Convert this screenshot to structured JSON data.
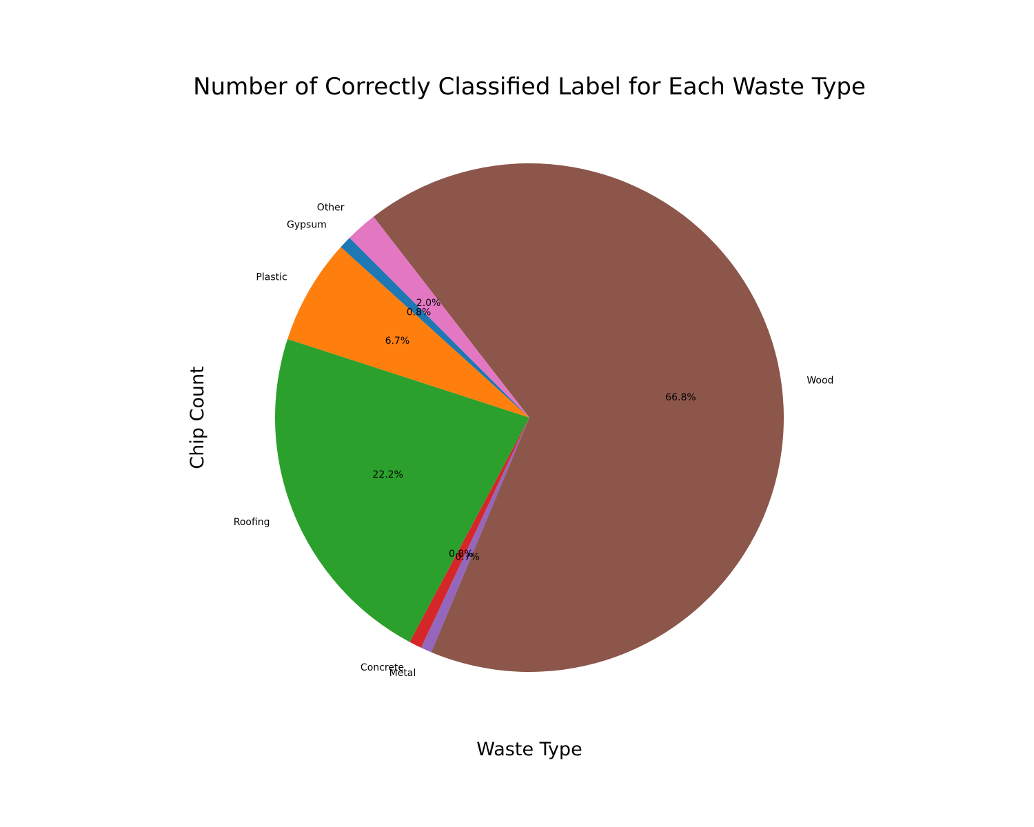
{
  "chart_data": {
    "type": "pie",
    "title": "Number of Correctly Classified Label for Each Waste Type",
    "xlabel": "Waste Type",
    "ylabel": "Chip Count",
    "start_angle_deg": 135,
    "direction": "counterclockwise",
    "slices": [
      {
        "label": "Gypsum",
        "percent": 0.8,
        "percent_label": "0.8%",
        "color": "#1f77b4"
      },
      {
        "label": "Plastic",
        "percent": 6.7,
        "percent_label": "6.7%",
        "color": "#ff7f0e"
      },
      {
        "label": "Roofing",
        "percent": 22.2,
        "percent_label": "22.2%",
        "color": "#2ca02c"
      },
      {
        "label": "Concrete",
        "percent": 0.8,
        "percent_label": "0.8%",
        "color": "#d62728"
      },
      {
        "label": "Metal",
        "percent": 0.7,
        "percent_label": "0.7%",
        "color": "#9467bd"
      },
      {
        "label": "Wood",
        "percent": 66.8,
        "percent_label": "66.8%",
        "color": "#8c564b"
      },
      {
        "label": "Other",
        "percent": 2.0,
        "percent_label": "2.0%",
        "color": "#e377c2"
      }
    ]
  }
}
